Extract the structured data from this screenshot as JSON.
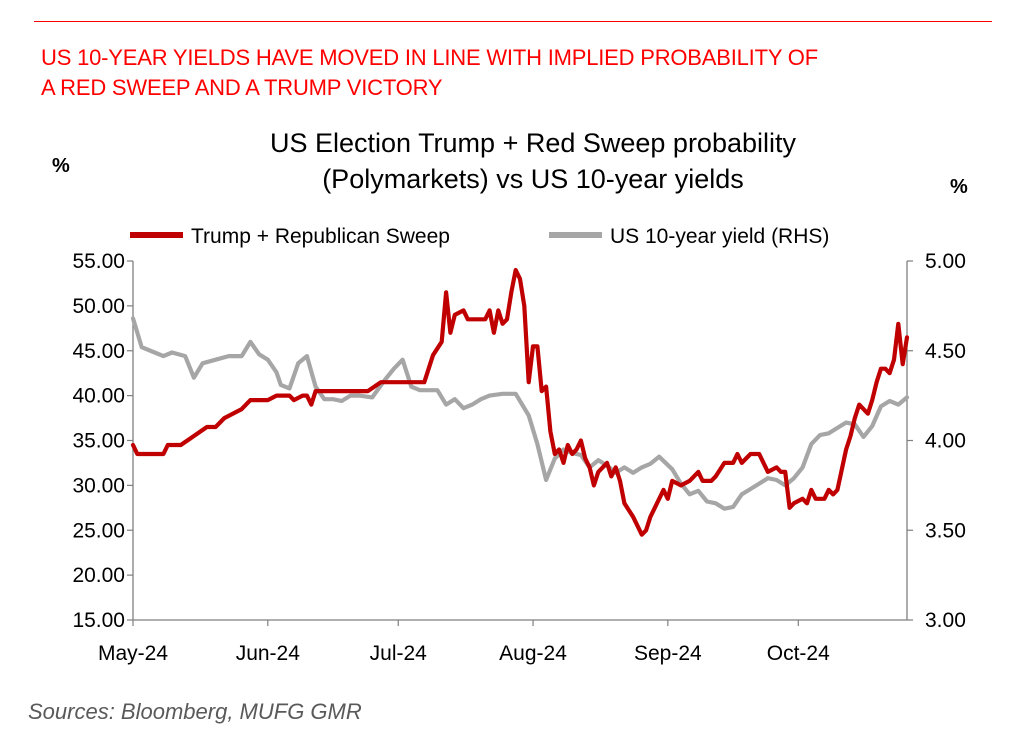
{
  "header": {
    "headline_line1": "US 10-YEAR YIELDS HAVE MOVED IN LINE WITH IMPLIED PROBABILITY OF",
    "headline_line2": "A RED SWEEP AND A TRUMP VICTORY"
  },
  "footer": {
    "source": "Sources:  Bloomberg, MUFG GMR"
  },
  "colors": {
    "accent": "#ff0000",
    "series_red": "#c00000",
    "series_grey": "#a6a6a6"
  },
  "chart_data": {
    "type": "line",
    "title_line1": "US Election Trump + Red Sweep probability",
    "title_line2": "(Polymarkets) vs US 10-year yields",
    "ylabel_left": "%",
    "ylabel_right": "%",
    "ylim_left": [
      15,
      55
    ],
    "ylim_right": [
      3.0,
      5.0
    ],
    "xlim": [
      "2024-05-01",
      "2024-10-26"
    ],
    "yticks_left": [
      "15.00",
      "20.00",
      "25.00",
      "30.00",
      "35.00",
      "40.00",
      "45.00",
      "50.00",
      "55.00"
    ],
    "yticks_right": [
      "3.00",
      "3.50",
      "4.00",
      "4.50",
      "5.00"
    ],
    "x_tick_labels": [
      "May-24",
      "Jun-24",
      "Jul-24",
      "Aug-24",
      "Sep-24",
      "Oct-24"
    ],
    "x_tick_dates": [
      "2024-05-01",
      "2024-06-01",
      "2024-07-01",
      "2024-08-01",
      "2024-09-01",
      "2024-10-01"
    ],
    "grid": false,
    "legend_position": "top",
    "series": [
      {
        "name": "Trump + Republican Sweep",
        "axis": "left",
        "color": "#c00000",
        "points": [
          [
            "2024-05-01",
            34.5
          ],
          [
            "2024-05-02",
            33.5
          ],
          [
            "2024-05-08",
            33.5
          ],
          [
            "2024-05-09",
            34.5
          ],
          [
            "2024-05-12",
            34.5
          ],
          [
            "2024-05-15",
            35.5
          ],
          [
            "2024-05-18",
            36.5
          ],
          [
            "2024-05-20",
            36.5
          ],
          [
            "2024-05-22",
            37.5
          ],
          [
            "2024-05-24",
            38.0
          ],
          [
            "2024-05-26",
            38.5
          ],
          [
            "2024-05-28",
            39.5
          ],
          [
            "2024-06-01",
            39.5
          ],
          [
            "2024-06-03",
            40.0
          ],
          [
            "2024-06-06",
            40.0
          ],
          [
            "2024-06-07",
            39.5
          ],
          [
            "2024-06-09",
            40.0
          ],
          [
            "2024-06-10",
            40.0
          ],
          [
            "2024-06-11",
            39.0
          ],
          [
            "2024-06-12",
            40.5
          ],
          [
            "2024-06-15",
            40.5
          ],
          [
            "2024-06-18",
            40.5
          ],
          [
            "2024-06-21",
            40.5
          ],
          [
            "2024-06-24",
            40.5
          ],
          [
            "2024-06-27",
            41.5
          ],
          [
            "2024-07-05",
            41.5
          ],
          [
            "2024-07-07",
            41.5
          ],
          [
            "2024-07-09",
            44.5
          ],
          [
            "2024-07-11",
            46.0
          ],
          [
            "2024-07-12",
            51.5
          ],
          [
            "2024-07-13",
            47.0
          ],
          [
            "2024-07-14",
            49.0
          ],
          [
            "2024-07-16",
            49.5
          ],
          [
            "2024-07-17",
            48.5
          ],
          [
            "2024-07-21",
            48.5
          ],
          [
            "2024-07-22",
            49.5
          ],
          [
            "2024-07-23",
            47.0
          ],
          [
            "2024-07-24",
            49.5
          ],
          [
            "2024-07-25",
            48.0
          ],
          [
            "2024-07-26",
            48.5
          ],
          [
            "2024-07-27",
            51.5
          ],
          [
            "2024-07-28",
            54.0
          ],
          [
            "2024-07-29",
            53.0
          ],
          [
            "2024-07-30",
            50.0
          ],
          [
            "2024-07-31",
            41.5
          ],
          [
            "2024-08-01",
            45.5
          ],
          [
            "2024-08-02",
            45.5
          ],
          [
            "2024-08-03",
            40.5
          ],
          [
            "2024-08-04",
            41.0
          ],
          [
            "2024-08-05",
            36.0
          ],
          [
            "2024-08-06",
            33.5
          ],
          [
            "2024-08-07",
            34.0
          ],
          [
            "2024-08-08",
            32.5
          ],
          [
            "2024-08-09",
            34.5
          ],
          [
            "2024-08-10",
            33.5
          ],
          [
            "2024-08-11",
            34.0
          ],
          [
            "2024-08-12",
            35.0
          ],
          [
            "2024-08-13",
            33.0
          ],
          [
            "2024-08-14",
            32.0
          ],
          [
            "2024-08-15",
            30.0
          ],
          [
            "2024-08-16",
            31.5
          ],
          [
            "2024-08-18",
            32.5
          ],
          [
            "2024-08-19",
            31.0
          ],
          [
            "2024-08-20",
            32.0
          ],
          [
            "2024-08-21",
            30.5
          ],
          [
            "2024-08-22",
            28.0
          ],
          [
            "2024-08-24",
            26.5
          ],
          [
            "2024-08-26",
            24.5
          ],
          [
            "2024-08-27",
            25.0
          ],
          [
            "2024-08-28",
            26.5
          ],
          [
            "2024-08-29",
            27.5
          ],
          [
            "2024-08-31",
            29.5
          ],
          [
            "2024-09-01",
            28.5
          ],
          [
            "2024-09-02",
            30.5
          ],
          [
            "2024-09-04",
            30.0
          ],
          [
            "2024-09-06",
            30.5
          ],
          [
            "2024-09-08",
            31.5
          ],
          [
            "2024-09-09",
            30.5
          ],
          [
            "2024-09-11",
            30.5
          ],
          [
            "2024-09-12",
            31.0
          ],
          [
            "2024-09-14",
            32.5
          ],
          [
            "2024-09-16",
            32.5
          ],
          [
            "2024-09-17",
            33.5
          ],
          [
            "2024-09-18",
            32.5
          ],
          [
            "2024-09-20",
            33.5
          ],
          [
            "2024-09-22",
            33.5
          ],
          [
            "2024-09-23",
            32.5
          ],
          [
            "2024-09-24",
            31.5
          ],
          [
            "2024-09-26",
            32.0
          ],
          [
            "2024-09-27",
            31.5
          ],
          [
            "2024-09-28",
            31.5
          ],
          [
            "2024-09-29",
            27.5
          ],
          [
            "2024-09-30",
            28.0
          ],
          [
            "2024-10-02",
            28.5
          ],
          [
            "2024-10-03",
            28.0
          ],
          [
            "2024-10-04",
            29.5
          ],
          [
            "2024-10-05",
            28.5
          ],
          [
            "2024-10-07",
            28.5
          ],
          [
            "2024-10-08",
            29.5
          ],
          [
            "2024-10-09",
            29.0
          ],
          [
            "2024-10-10",
            29.5
          ],
          [
            "2024-10-12",
            34.0
          ],
          [
            "2024-10-13",
            35.5
          ],
          [
            "2024-10-14",
            37.5
          ],
          [
            "2024-10-15",
            39.0
          ],
          [
            "2024-10-16",
            38.5
          ],
          [
            "2024-10-17",
            38.0
          ],
          [
            "2024-10-18",
            39.5
          ],
          [
            "2024-10-19",
            41.5
          ],
          [
            "2024-10-20",
            43.0
          ],
          [
            "2024-10-21",
            43.0
          ],
          [
            "2024-10-22",
            42.5
          ],
          [
            "2024-10-23",
            44.0
          ],
          [
            "2024-10-24",
            48.0
          ],
          [
            "2024-10-25",
            43.5
          ],
          [
            "2024-10-26",
            46.5
          ]
        ]
      },
      {
        "name": "US 10-year yield (RHS)",
        "axis": "right",
        "color": "#a6a6a6",
        "points": [
          [
            "2024-05-01",
            4.68
          ],
          [
            "2024-05-03",
            4.52
          ],
          [
            "2024-05-06",
            4.49
          ],
          [
            "2024-05-08",
            4.47
          ],
          [
            "2024-05-10",
            4.49
          ],
          [
            "2024-05-13",
            4.47
          ],
          [
            "2024-05-15",
            4.35
          ],
          [
            "2024-05-17",
            4.43
          ],
          [
            "2024-05-20",
            4.45
          ],
          [
            "2024-05-23",
            4.47
          ],
          [
            "2024-05-26",
            4.47
          ],
          [
            "2024-05-28",
            4.55
          ],
          [
            "2024-05-30",
            4.48
          ],
          [
            "2024-06-01",
            4.45
          ],
          [
            "2024-06-03",
            4.38
          ],
          [
            "2024-06-04",
            4.31
          ],
          [
            "2024-06-06",
            4.29
          ],
          [
            "2024-06-08",
            4.43
          ],
          [
            "2024-06-10",
            4.47
          ],
          [
            "2024-06-12",
            4.3
          ],
          [
            "2024-06-14",
            4.23
          ],
          [
            "2024-06-16",
            4.23
          ],
          [
            "2024-06-18",
            4.22
          ],
          [
            "2024-06-20",
            4.25
          ],
          [
            "2024-06-22",
            4.25
          ],
          [
            "2024-06-25",
            4.24
          ],
          [
            "2024-06-28",
            4.34
          ],
          [
            "2024-06-30",
            4.4
          ],
          [
            "2024-07-02",
            4.45
          ],
          [
            "2024-07-04",
            4.3
          ],
          [
            "2024-07-06",
            4.28
          ],
          [
            "2024-07-08",
            4.28
          ],
          [
            "2024-07-10",
            4.28
          ],
          [
            "2024-07-12",
            4.2
          ],
          [
            "2024-07-14",
            4.23
          ],
          [
            "2024-07-16",
            4.18
          ],
          [
            "2024-07-18",
            4.2
          ],
          [
            "2024-07-20",
            4.23
          ],
          [
            "2024-07-22",
            4.25
          ],
          [
            "2024-07-25",
            4.26
          ],
          [
            "2024-07-28",
            4.26
          ],
          [
            "2024-07-31",
            4.14
          ],
          [
            "2024-08-02",
            3.98
          ],
          [
            "2024-08-04",
            3.78
          ],
          [
            "2024-08-06",
            3.9
          ],
          [
            "2024-08-08",
            3.95
          ],
          [
            "2024-08-10",
            3.93
          ],
          [
            "2024-08-12",
            3.92
          ],
          [
            "2024-08-14",
            3.85
          ],
          [
            "2024-08-16",
            3.89
          ],
          [
            "2024-08-18",
            3.86
          ],
          [
            "2024-08-20",
            3.82
          ],
          [
            "2024-08-22",
            3.85
          ],
          [
            "2024-08-24",
            3.82
          ],
          [
            "2024-08-26",
            3.85
          ],
          [
            "2024-08-28",
            3.87
          ],
          [
            "2024-08-30",
            3.91
          ],
          [
            "2024-09-02",
            3.84
          ],
          [
            "2024-09-04",
            3.76
          ],
          [
            "2024-09-06",
            3.7
          ],
          [
            "2024-09-08",
            3.72
          ],
          [
            "2024-09-10",
            3.66
          ],
          [
            "2024-09-12",
            3.65
          ],
          [
            "2024-09-14",
            3.62
          ],
          [
            "2024-09-16",
            3.63
          ],
          [
            "2024-09-18",
            3.7
          ],
          [
            "2024-09-20",
            3.73
          ],
          [
            "2024-09-22",
            3.76
          ],
          [
            "2024-09-24",
            3.79
          ],
          [
            "2024-09-26",
            3.78
          ],
          [
            "2024-09-28",
            3.75
          ],
          [
            "2024-09-30",
            3.79
          ],
          [
            "2024-10-02",
            3.85
          ],
          [
            "2024-10-04",
            3.98
          ],
          [
            "2024-10-06",
            4.03
          ],
          [
            "2024-10-08",
            4.04
          ],
          [
            "2024-10-10",
            4.07
          ],
          [
            "2024-10-12",
            4.1
          ],
          [
            "2024-10-14",
            4.09
          ],
          [
            "2024-10-16",
            4.02
          ],
          [
            "2024-10-18",
            4.08
          ],
          [
            "2024-10-20",
            4.19
          ],
          [
            "2024-10-22",
            4.22
          ],
          [
            "2024-10-24",
            4.2
          ],
          [
            "2024-10-26",
            4.24
          ]
        ]
      }
    ]
  }
}
